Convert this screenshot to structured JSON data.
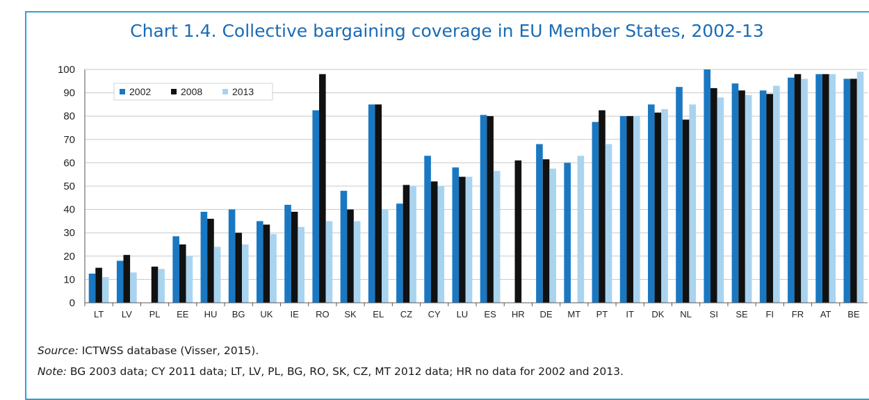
{
  "title": "Chart 1.4. Collective bargaining coverage in EU Member States, 2002-13",
  "source_label": "Source:",
  "source_text": " ICTWSS database (Visser, 2015).",
  "note_label": "Note:",
  "note_text": " BG 2003 data; CY 2011 data; LT, LV, PL, BG, RO, SK, CZ, MT 2012 data; HR no data for 2002 and 2013.",
  "colors": {
    "frame": "#2aa0d6",
    "title": "#1a6bb5",
    "2002": "#1a78c2",
    "2008": "#111111",
    "2013": "#a9d4f0",
    "grid": "#c8c8c8"
  },
  "chart_data": {
    "type": "bar",
    "title": "Chart 1.4. Collective bargaining coverage in EU Member States, 2002-13",
    "xlabel": "",
    "ylabel": "",
    "ylim": [
      0,
      100
    ],
    "yticks": [
      0,
      10,
      20,
      30,
      40,
      50,
      60,
      70,
      80,
      90,
      100
    ],
    "grid": true,
    "legend_position": "top-left",
    "categories": [
      "LT",
      "LV",
      "PL",
      "EE",
      "HU",
      "BG",
      "UK",
      "IE",
      "RO",
      "SK",
      "EL",
      "CZ",
      "CY",
      "LU",
      "ES",
      "HR",
      "DE",
      "MT",
      "PT",
      "IT",
      "DK",
      "NL",
      "SI",
      "SE",
      "FI",
      "FR",
      "AT",
      "BE"
    ],
    "series": [
      {
        "name": "2002",
        "color": "#1a78c2",
        "values": [
          12.5,
          18,
          null,
          28.5,
          39,
          40,
          35,
          42,
          82.5,
          48,
          85,
          42.5,
          63,
          58,
          80.5,
          null,
          68,
          60,
          77.5,
          80,
          85,
          92.5,
          100,
          94,
          91,
          96.5,
          98,
          96
        ]
      },
      {
        "name": "2008",
        "color": "#111111",
        "values": [
          15,
          20.5,
          15.5,
          25,
          36,
          30,
          33.5,
          39,
          98,
          40,
          85,
          50.5,
          52,
          54,
          80,
          61,
          61.5,
          null,
          82.5,
          80,
          81.5,
          78.5,
          92,
          91,
          89.5,
          98,
          98,
          96
        ]
      },
      {
        "name": "2013",
        "color": "#a9d4f0",
        "values": [
          11,
          13,
          14.5,
          20,
          24,
          25,
          29.5,
          32.5,
          35,
          35,
          40,
          50,
          50,
          54,
          56.5,
          null,
          57.5,
          63,
          68,
          80,
          83,
          85,
          88,
          89,
          93,
          96,
          98,
          99
        ]
      }
    ]
  }
}
